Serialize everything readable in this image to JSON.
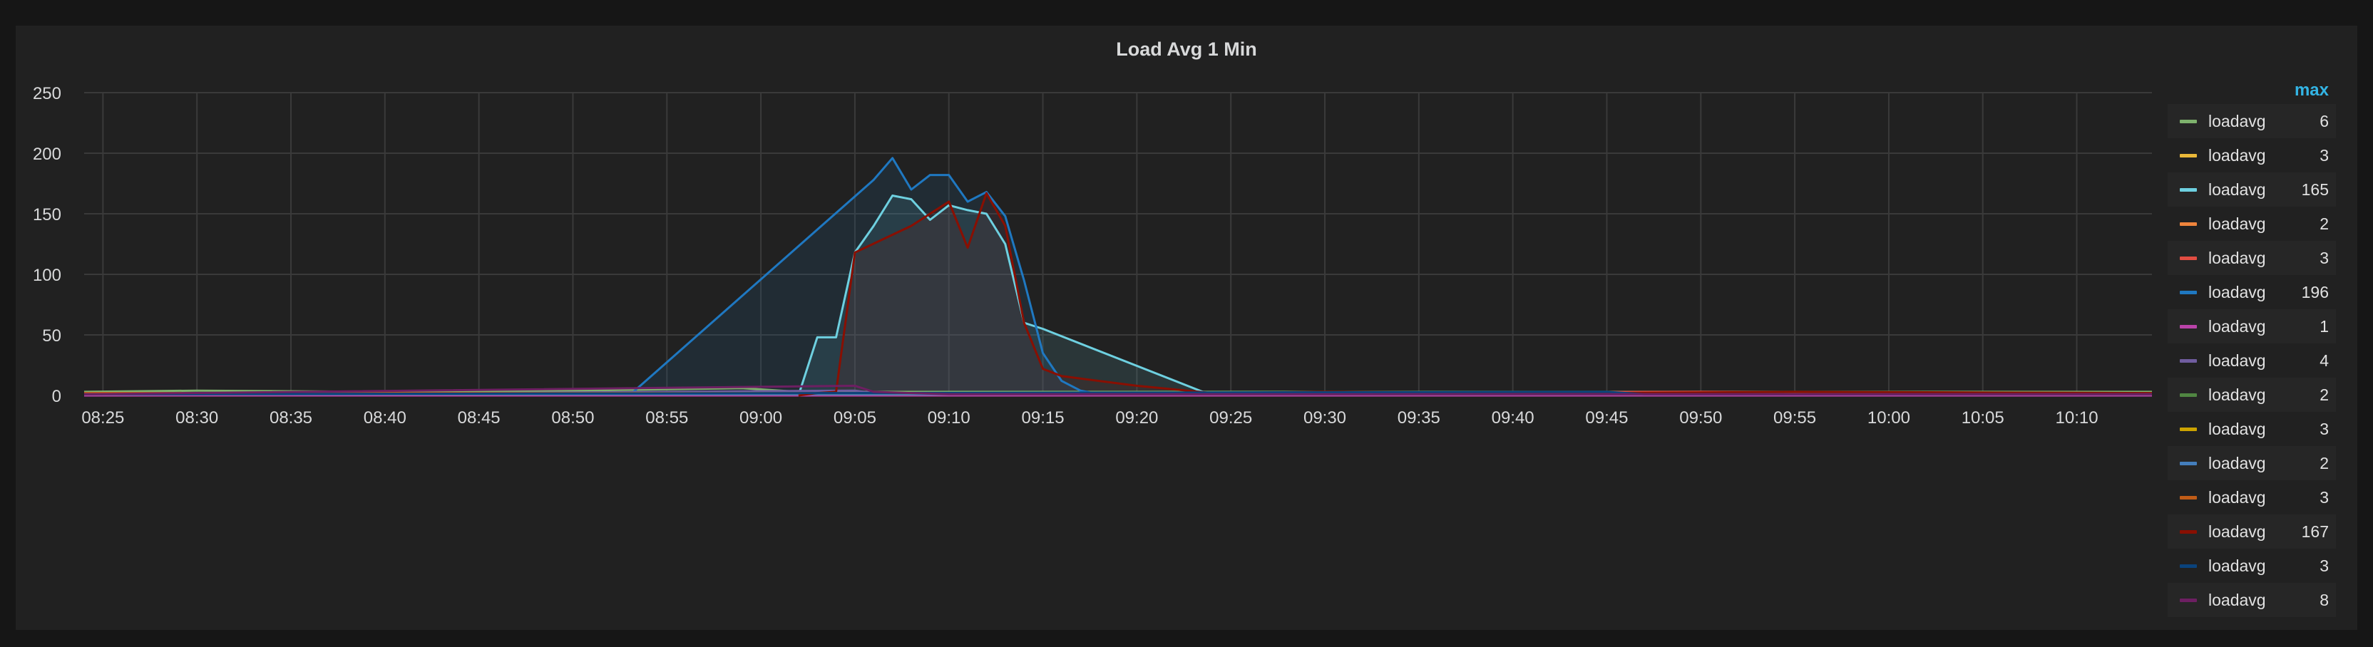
{
  "chart_data": {
    "type": "line",
    "title": "Load Avg 1 Min",
    "xlabel": "",
    "ylabel": "",
    "x_ticks": [
      "08:25",
      "08:30",
      "08:35",
      "08:40",
      "08:45",
      "08:50",
      "08:55",
      "09:00",
      "09:05",
      "09:10",
      "09:15",
      "09:20",
      "09:25",
      "09:30",
      "09:35",
      "09:40",
      "09:45",
      "09:50",
      "09:55",
      "10:00",
      "10:05",
      "10:10"
    ],
    "x_range": [
      "08:24",
      "10:14"
    ],
    "y_ticks": [
      0,
      50,
      100,
      150,
      200,
      250
    ],
    "ylim": [
      0,
      250
    ],
    "grid": true,
    "legend_placement": "right",
    "legend_header": "max",
    "series": [
      {
        "name": "loadavg",
        "max": "6",
        "color": "#7eb26d",
        "points": [
          [
            "08:24",
            3
          ],
          [
            "08:30",
            4
          ],
          [
            "08:40",
            3
          ],
          [
            "08:50",
            4
          ],
          [
            "08:59",
            6
          ],
          [
            "09:02",
            3
          ],
          [
            "09:10",
            3
          ],
          [
            "09:20",
            3
          ],
          [
            "09:40",
            3
          ],
          [
            "10:00",
            3
          ],
          [
            "10:14",
            3
          ]
        ]
      },
      {
        "name": "loadavg",
        "max": "3",
        "color": "#eab839",
        "points": [
          [
            "08:24",
            1
          ],
          [
            "09:00",
            2
          ],
          [
            "09:10",
            2
          ],
          [
            "09:30",
            1
          ],
          [
            "10:14",
            1
          ]
        ]
      },
      {
        "name": "loadavg",
        "max": "165",
        "color": "#6ed0e0",
        "fill": true,
        "points": [
          [
            "09:02",
            0
          ],
          [
            "09:03",
            48
          ],
          [
            "09:04",
            48
          ],
          [
            "09:05",
            118
          ],
          [
            "09:06",
            140
          ],
          [
            "09:07",
            165
          ],
          [
            "09:08",
            162
          ],
          [
            "09:09",
            145
          ],
          [
            "09:10",
            157
          ],
          [
            "09:11",
            153
          ],
          [
            "09:12",
            150
          ],
          [
            "09:13",
            125
          ],
          [
            "09:14",
            60
          ],
          [
            "09:15",
            55
          ],
          [
            "09:24",
            0
          ]
        ]
      },
      {
        "name": "loadavg",
        "max": "2",
        "color": "#ef843c",
        "points": [
          [
            "08:24",
            1
          ],
          [
            "09:00",
            1
          ],
          [
            "10:14",
            1
          ]
        ]
      },
      {
        "name": "loadavg",
        "max": "3",
        "color": "#e24d42",
        "points": [
          [
            "08:24",
            2
          ],
          [
            "08:40",
            2
          ],
          [
            "09:20",
            2
          ],
          [
            "09:50",
            3
          ],
          [
            "10:14",
            2
          ]
        ]
      },
      {
        "name": "loadavg",
        "max": "196",
        "color": "#1f78c1",
        "fill": true,
        "points": [
          [
            "08:53",
            0
          ],
          [
            "09:06",
            178
          ],
          [
            "09:07",
            196
          ],
          [
            "09:08",
            170
          ],
          [
            "09:09",
            182
          ],
          [
            "09:10",
            182
          ],
          [
            "09:11",
            160
          ],
          [
            "09:12",
            168
          ],
          [
            "09:13",
            148
          ],
          [
            "09:14",
            95
          ],
          [
            "09:15",
            35
          ],
          [
            "09:16",
            12
          ],
          [
            "09:17",
            4
          ],
          [
            "09:18",
            1
          ],
          [
            "09:20",
            0
          ]
        ]
      },
      {
        "name": "loadavg",
        "max": "1",
        "color": "#ba43a9",
        "points": [
          [
            "08:24",
            0
          ],
          [
            "10:14",
            0
          ]
        ]
      },
      {
        "name": "loadavg",
        "max": "4",
        "color": "#705da0",
        "points": [
          [
            "08:24",
            1
          ],
          [
            "08:45",
            2
          ],
          [
            "09:05",
            4
          ],
          [
            "09:06",
            2
          ],
          [
            "09:20",
            1
          ],
          [
            "10:14",
            1
          ]
        ]
      },
      {
        "name": "loadavg",
        "max": "2",
        "color": "#508642",
        "points": [
          [
            "08:24",
            1
          ],
          [
            "10:14",
            1
          ]
        ]
      },
      {
        "name": "loadavg",
        "max": "3",
        "color": "#cca300",
        "points": [
          [
            "08:24",
            1
          ],
          [
            "09:00",
            2
          ],
          [
            "10:14",
            1
          ]
        ]
      },
      {
        "name": "loadavg",
        "max": "2",
        "color": "#447ebc",
        "points": [
          [
            "08:24",
            1
          ],
          [
            "10:14",
            1
          ]
        ]
      },
      {
        "name": "loadavg",
        "max": "3",
        "color": "#c15c17",
        "points": [
          [
            "08:24",
            2
          ],
          [
            "09:00",
            2
          ],
          [
            "10:14",
            2
          ]
        ]
      },
      {
        "name": "loadavg",
        "max": "167",
        "color": "#890f02",
        "fill": true,
        "points": [
          [
            "09:02",
            0
          ],
          [
            "09:03",
            2
          ],
          [
            "09:04",
            3
          ],
          [
            "09:05",
            118
          ],
          [
            "09:08",
            140
          ],
          [
            "09:10",
            160
          ],
          [
            "09:11",
            122
          ],
          [
            "09:12",
            167
          ],
          [
            "09:13",
            140
          ],
          [
            "09:14",
            60
          ],
          [
            "09:15",
            22
          ],
          [
            "09:16",
            16
          ],
          [
            "09:20",
            8
          ],
          [
            "09:24",
            2
          ],
          [
            "09:30",
            3
          ],
          [
            "09:45",
            2
          ],
          [
            "09:55",
            3
          ],
          [
            "10:14",
            2
          ]
        ]
      },
      {
        "name": "loadavg",
        "max": "3",
        "color": "#0a437c",
        "points": [
          [
            "08:24",
            1
          ],
          [
            "09:45",
            3
          ],
          [
            "09:47",
            1
          ],
          [
            "10:14",
            1
          ]
        ]
      },
      {
        "name": "loadavg",
        "max": "8",
        "color": "#6d1f62",
        "points": [
          [
            "08:24",
            1
          ],
          [
            "09:05",
            8
          ],
          [
            "09:06",
            3
          ],
          [
            "09:10",
            1
          ],
          [
            "10:14",
            1
          ]
        ]
      }
    ]
  }
}
